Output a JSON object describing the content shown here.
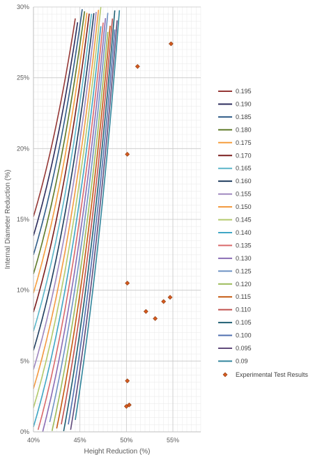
{
  "chart_data": {
    "type": "line",
    "xlabel": "Height Reduction (%)",
    "ylabel": "Internal Diameter Reduction (%)",
    "xlim": [
      0.4,
      0.58
    ],
    "ylim": [
      0.0,
      0.3
    ],
    "x_ticks": [
      {
        "value": 0.4,
        "label": "40%"
      },
      {
        "value": 0.45,
        "label": "45%"
      },
      {
        "value": 0.5,
        "label": "50%"
      },
      {
        "value": 0.55,
        "label": "55%"
      }
    ],
    "y_ticks": [
      {
        "value": 0.0,
        "label": "0%"
      },
      {
        "value": 0.05,
        "label": "5%"
      },
      {
        "value": 0.1,
        "label": "10%"
      },
      {
        "value": 0.15,
        "label": "15%"
      },
      {
        "value": 0.2,
        "label": "20%"
      },
      {
        "value": 0.25,
        "label": "25%"
      },
      {
        "value": 0.3,
        "label": "30%"
      }
    ],
    "grid": true,
    "legend_position": "right",
    "curve_model": {
      "y_at_x40_for_0195": 0.152,
      "growth_per_unit_x": 14.5,
      "offset_per_series_step": 0.0135
    },
    "series": [
      {
        "name": "0.195",
        "k": 0,
        "color": "#953735"
      },
      {
        "name": "0.190",
        "k": 1,
        "color": "#2c2c5c"
      },
      {
        "name": "0.185",
        "k": 2,
        "color": "#2f5b87"
      },
      {
        "name": "0.180",
        "k": 3,
        "color": "#5f7a28"
      },
      {
        "name": "0.175",
        "k": 4,
        "color": "#f59d3d"
      },
      {
        "name": "0.170",
        "k": 5,
        "color": "#7a1c1c"
      },
      {
        "name": "0.165",
        "k": 6,
        "color": "#5bb6c9"
      },
      {
        "name": "0.160",
        "k": 7,
        "color": "#1f3d5f"
      },
      {
        "name": "0.155",
        "k": 8,
        "color": "#9f87bf"
      },
      {
        "name": "0.150",
        "k": 9,
        "color": "#f39a40"
      },
      {
        "name": "0.145",
        "k": 10,
        "color": "#b3c96b"
      },
      {
        "name": "0.140",
        "k": 11,
        "color": "#3fa6c5"
      },
      {
        "name": "0.135",
        "k": 12,
        "color": "#d9696a"
      },
      {
        "name": "0.130",
        "k": 13,
        "color": "#8a6db5"
      },
      {
        "name": "0.125",
        "k": 14,
        "color": "#6f93c4"
      },
      {
        "name": "0.120",
        "k": 15,
        "color": "#9cbb59"
      },
      {
        "name": "0.115",
        "k": 16,
        "color": "#c55a11"
      },
      {
        "name": "0.110",
        "k": 17,
        "color": "#c0504d"
      },
      {
        "name": "0.105",
        "k": 18,
        "color": "#1f5f73"
      },
      {
        "name": "0.100",
        "k": 19,
        "color": "#4f6faf"
      },
      {
        "name": "0.095",
        "k": 20,
        "color": "#604a7b"
      },
      {
        "name": "0.09",
        "k": 21,
        "color": "#31859c"
      }
    ],
    "scatter": {
      "name": "Experimental Test Results",
      "color": "#d55a1f",
      "border": "#8b3a0f",
      "points": [
        {
          "x": 0.512,
          "y": 0.258
        },
        {
          "x": 0.548,
          "y": 0.274
        },
        {
          "x": 0.501,
          "y": 0.196
        },
        {
          "x": 0.501,
          "y": 0.105
        },
        {
          "x": 0.521,
          "y": 0.085
        },
        {
          "x": 0.54,
          "y": 0.092
        },
        {
          "x": 0.547,
          "y": 0.095
        },
        {
          "x": 0.531,
          "y": 0.08
        },
        {
          "x": 0.501,
          "y": 0.036
        },
        {
          "x": 0.5,
          "y": 0.018
        },
        {
          "x": 0.503,
          "y": 0.019
        }
      ]
    }
  }
}
